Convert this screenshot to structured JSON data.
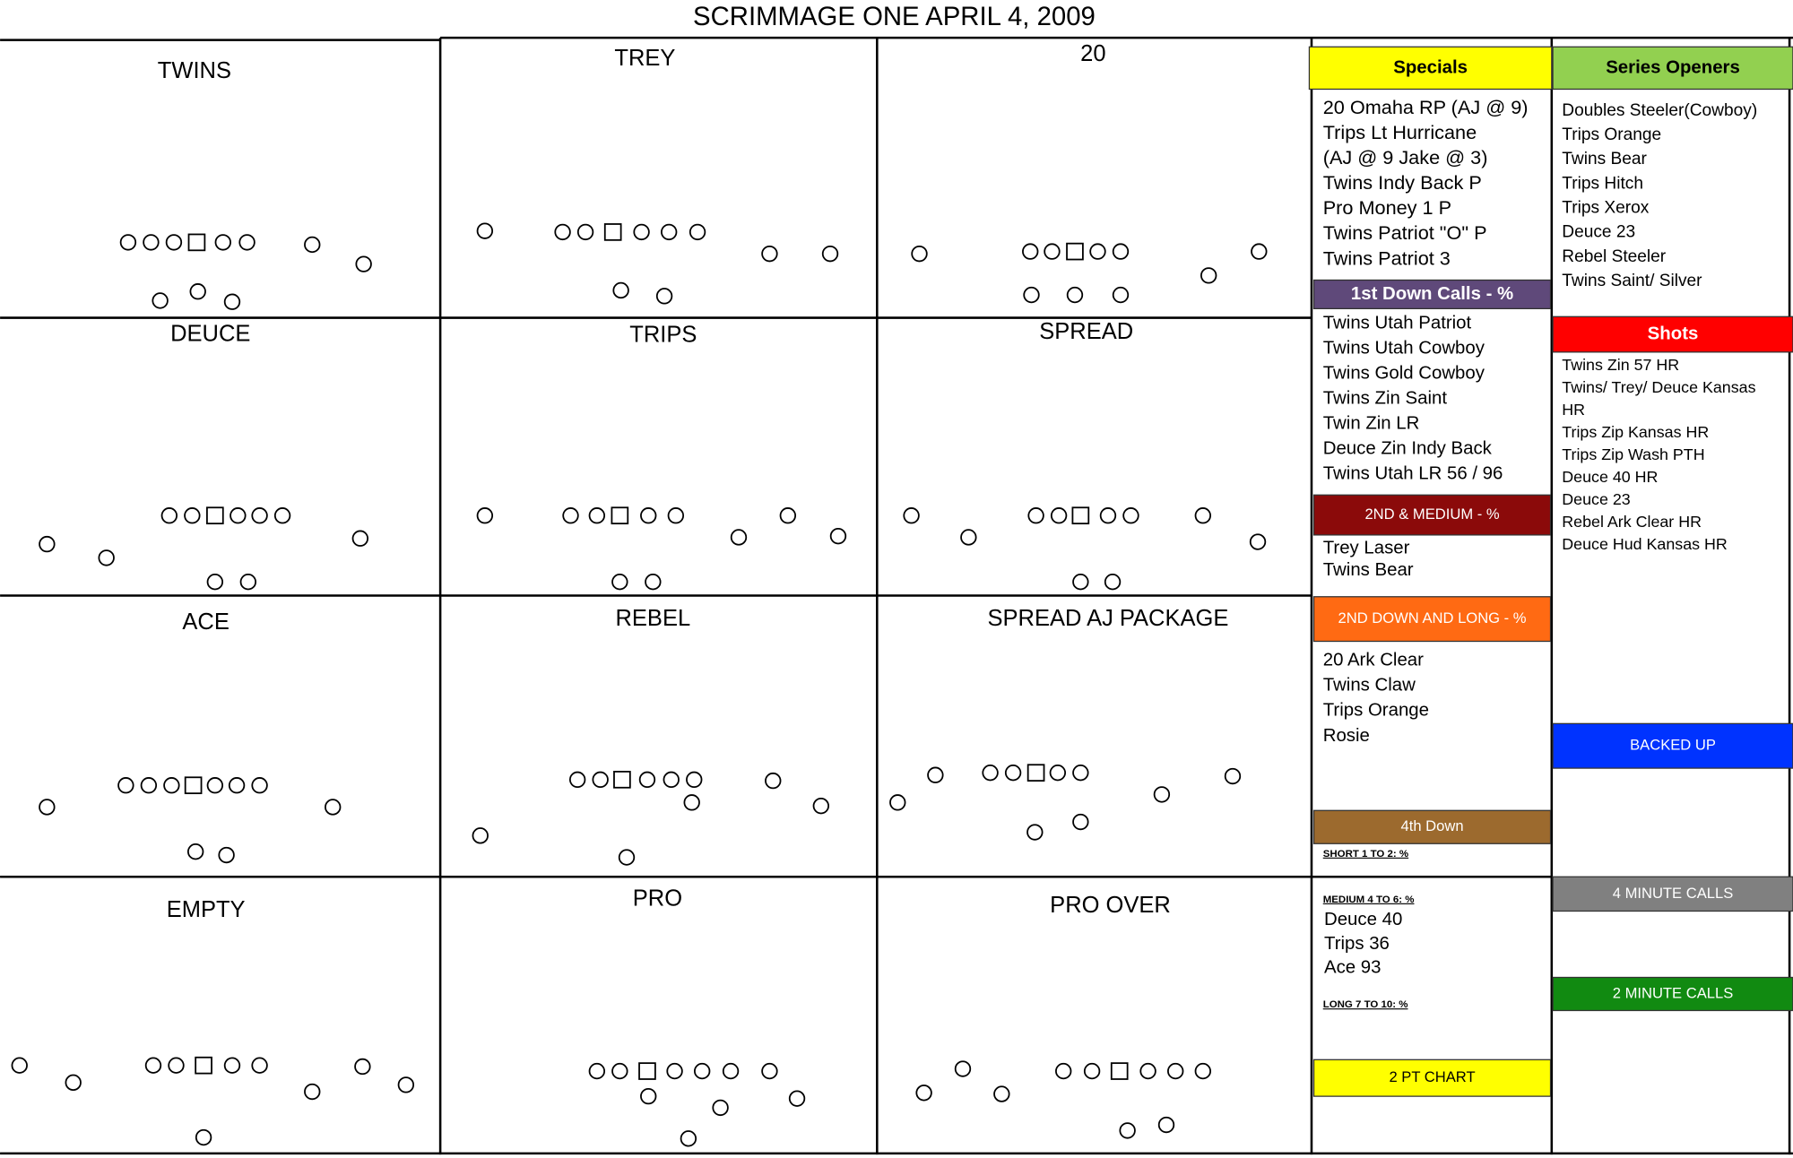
{
  "title": "SCRIMMAGE ONE APRIL 4, 2009",
  "formations": [
    {
      "name": "TWINS"
    },
    {
      "name": "TREY"
    },
    {
      "name": "20"
    },
    {
      "name": "DEUCE"
    },
    {
      "name": "TRIPS"
    },
    {
      "name": "SPREAD"
    },
    {
      "name": "ACE"
    },
    {
      "name": "REBEL"
    },
    {
      "name": "SPREAD AJ PACKAGE"
    },
    {
      "name": "EMPTY"
    },
    {
      "name": "PRO"
    },
    {
      "name": "PRO OVER"
    }
  ],
  "left_column": [
    {
      "header": "Specials",
      "items": [
        "20 Omaha RP (AJ @ 9)",
        "Trips Lt Hurricane",
        "(AJ @ 9 Jake @ 3)",
        "Twins Indy Back P",
        "Pro Money 1 P",
        "Twins Patriot \"O\" P",
        "Twins Patriot 3"
      ]
    },
    {
      "header": "1st Down Calls - %",
      "items": [
        "Twins Utah Patriot",
        "Twins Utah Cowboy",
        "Twins Gold Cowboy",
        "Twins Zin Saint",
        "Twin Zin LR",
        "Deuce Zin Indy Back",
        "Twins Utah LR 56 / 96"
      ]
    },
    {
      "header": "2ND & MEDIUM - %",
      "items": [
        "Trey Laser",
        "Twins Bear"
      ]
    },
    {
      "header": "2ND DOWN AND LONG - %",
      "items": [
        "20 Ark Clear",
        "Twins Claw",
        "Trips Orange",
        "Rosie"
      ]
    },
    {
      "header": "4th Down",
      "short": "SHORT  1  TO 2:  %",
      "medium": "MEDIUM  4  TO 6:  %",
      "medium_items": [
        "Deuce 40",
        "Trips 36",
        "Ace 93"
      ],
      "long": "LONG  7  TO 10:  %"
    },
    {
      "header": "2 PT CHART",
      "items": []
    }
  ],
  "right_column": [
    {
      "header": "Series Openers",
      "items": [
        "Doubles Steeler(Cowboy)",
        "Trips Orange",
        "Twins Bear",
        "Trips Hitch",
        "Trips Xerox",
        "Deuce 23",
        "Rebel Steeler",
        "Twins Saint/ Silver"
      ]
    },
    {
      "header": "Shots",
      "items": [
        "Twins Zin 57 HR",
        "Twins/ Trey/ Deuce Kansas",
        "HR",
        "Trips Zip Kansas HR",
        "Trips Zip Wash PTH",
        "Deuce 40 HR",
        "Deuce 23",
        "Rebel Ark Clear HR",
        "Deuce Hud Kansas HR"
      ]
    },
    {
      "header": "BACKED UP",
      "items": []
    },
    {
      "header": "4 MINUTE CALLS",
      "items": []
    },
    {
      "header": "2 MINUTE CALLS",
      "items": []
    }
  ]
}
